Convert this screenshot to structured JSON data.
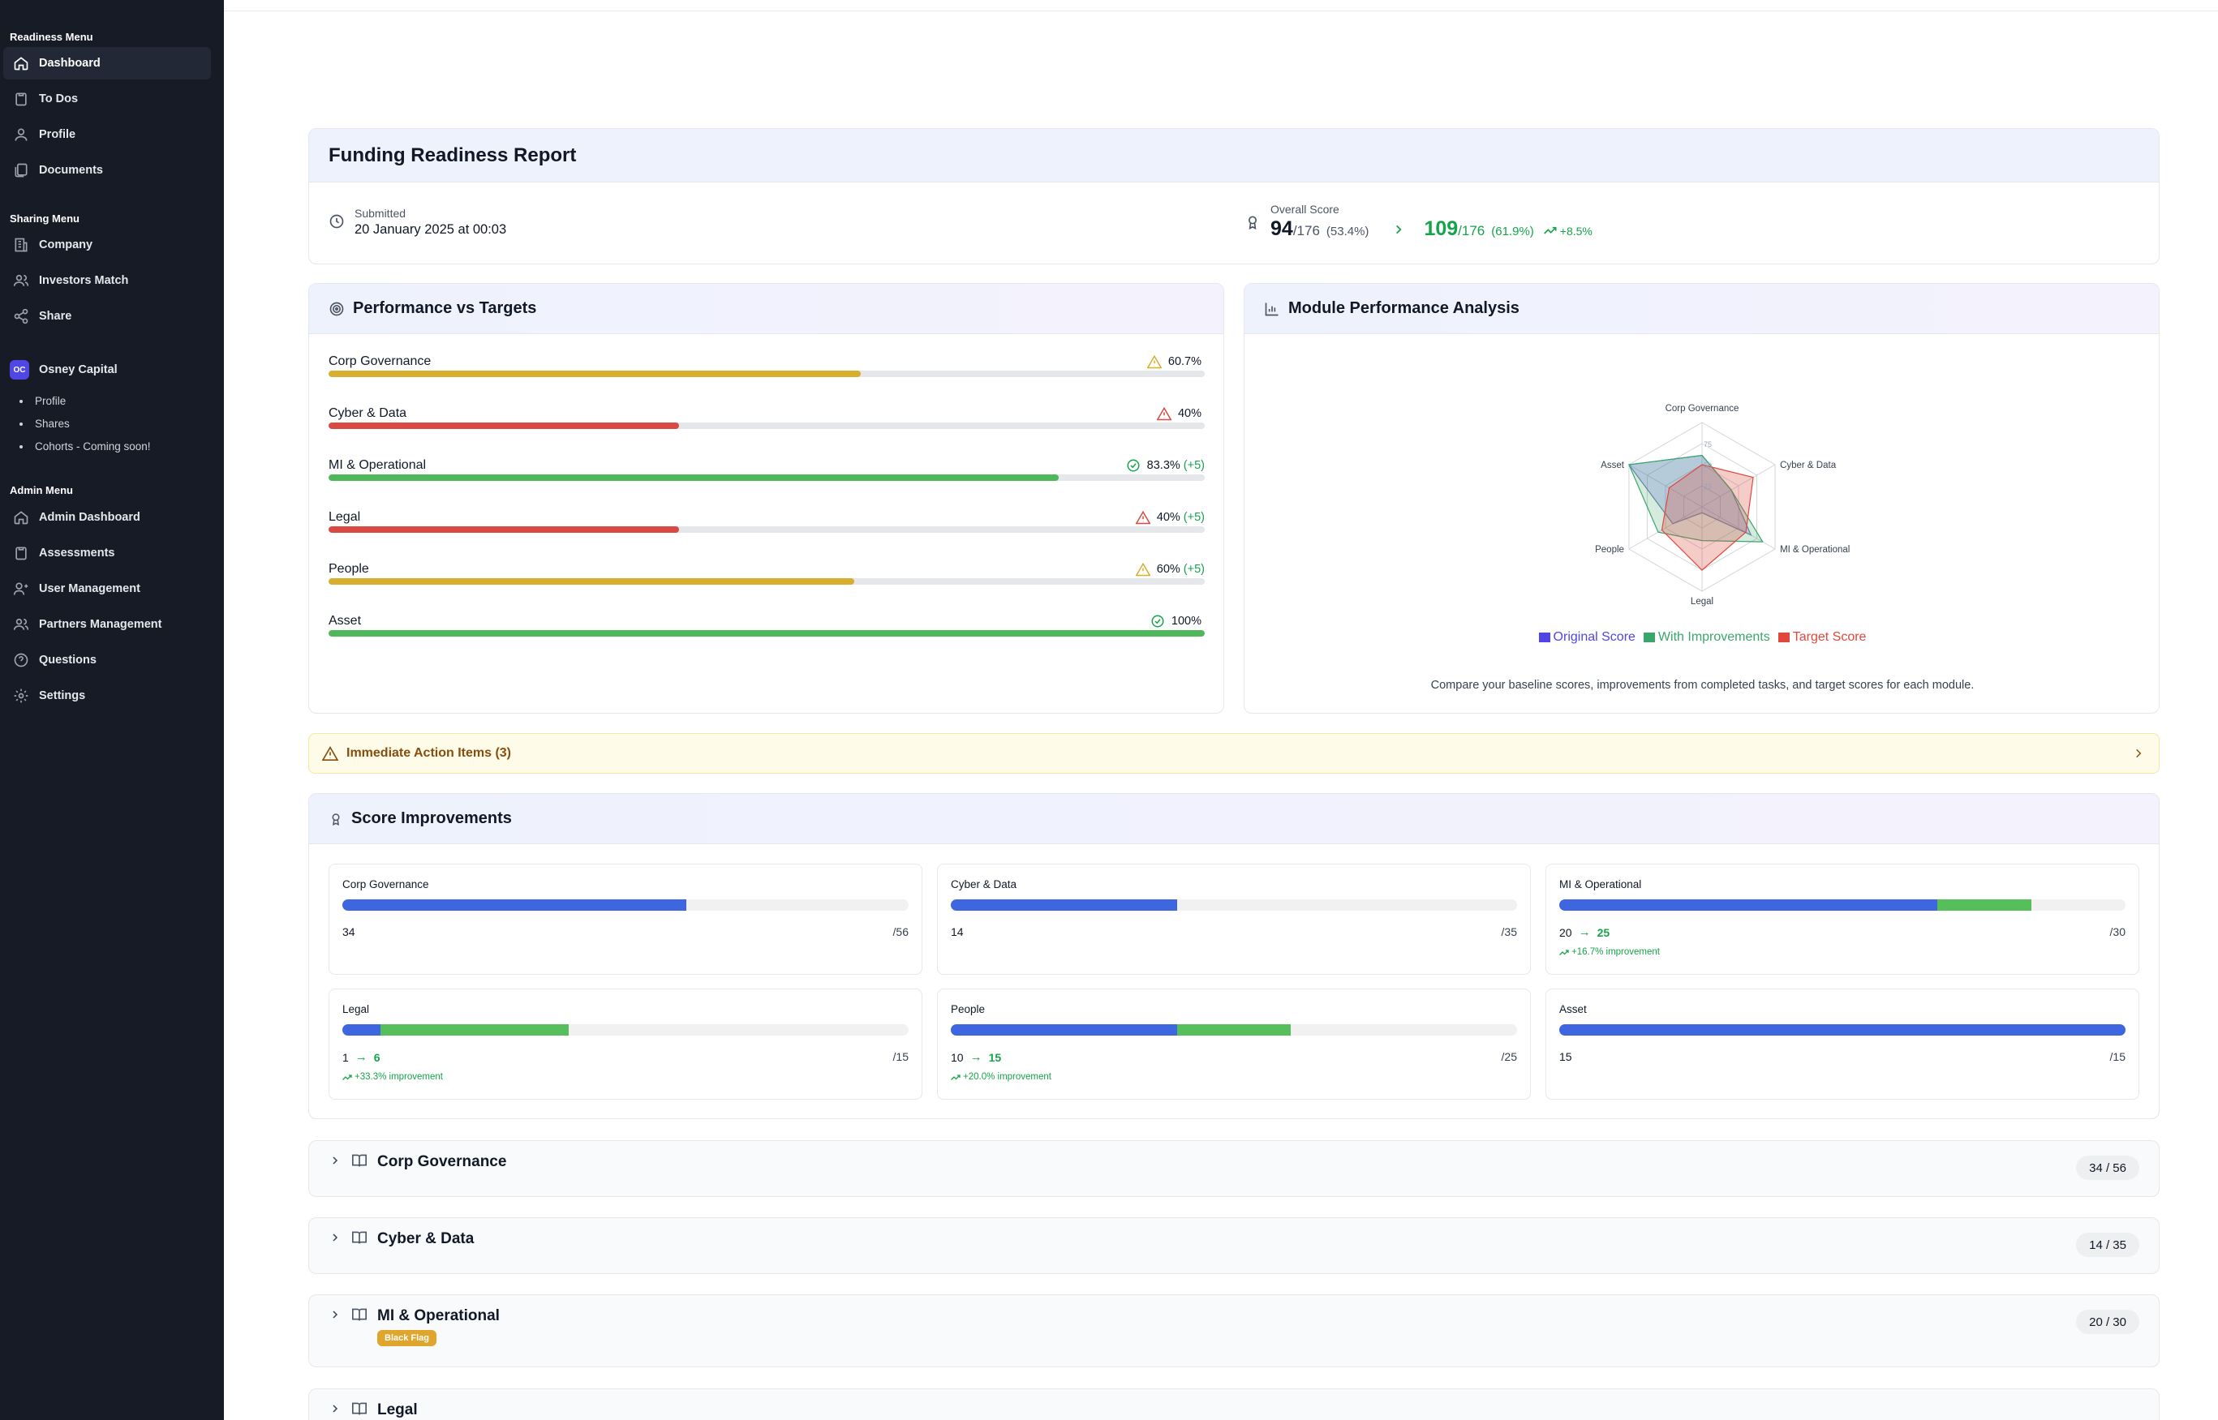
{
  "sidebar": {
    "readiness_title": "Readiness Menu",
    "readiness_items": [
      {
        "label": "Dashboard",
        "icon": "home-icon"
      },
      {
        "label": "To Dos",
        "icon": "clipboard-icon"
      },
      {
        "label": "Profile",
        "icon": "user-icon"
      },
      {
        "label": "Documents",
        "icon": "documents-icon"
      }
    ],
    "sharing_title": "Sharing Menu",
    "sharing_items": [
      {
        "label": "Company",
        "icon": "building-icon"
      },
      {
        "label": "Investors Match",
        "icon": "users-icon"
      },
      {
        "label": "Share",
        "icon": "share-icon"
      }
    ],
    "org": {
      "initials": "OC",
      "name": "Osney Capital",
      "items": [
        "Profile",
        "Shares",
        "Cohorts - Coming soon!"
      ]
    },
    "admin_title": "Admin Menu",
    "admin_items": [
      {
        "label": "Admin Dashboard",
        "icon": "home-icon"
      },
      {
        "label": "Assessments",
        "icon": "clipboard-icon"
      },
      {
        "label": "User Management",
        "icon": "user-icon"
      },
      {
        "label": "Partners Management",
        "icon": "users-icon"
      },
      {
        "label": "Questions",
        "icon": "help-circle-icon"
      },
      {
        "label": "Settings",
        "icon": "gear-icon"
      }
    ]
  },
  "report": {
    "title": "Funding Readiness Report",
    "submitted_label": "Submitted",
    "submitted_value": "20 January 2025 at 00:03",
    "overall_label": "Overall Score",
    "score_before": "94",
    "score_before_total": "/176",
    "score_before_pct": "(53.4%)",
    "score_after": "109",
    "score_after_total": "/176",
    "score_after_pct": "(61.9%)",
    "score_delta": "+8.5%"
  },
  "performance": {
    "title": "Performance vs Targets",
    "rows": [
      {
        "name": "Corp Governance",
        "value": "60.7%",
        "delta": "",
        "fraction": 0.607,
        "status": "warning",
        "color": "#d9ae2e"
      },
      {
        "name": "Cyber & Data",
        "value": "40%",
        "delta": "",
        "fraction": 0.4,
        "status": "danger",
        "color": "#d94a43"
      },
      {
        "name": "MI & Operational",
        "value": "83.3%",
        "delta": "(+5)",
        "fraction": 0.833,
        "status": "ok",
        "color": "#4fb85a"
      },
      {
        "name": "Legal",
        "value": "40%",
        "delta": "(+5)",
        "fraction": 0.4,
        "status": "danger",
        "color": "#d94a43"
      },
      {
        "name": "People",
        "value": "60%",
        "delta": "(+5)",
        "fraction": 0.6,
        "status": "warning",
        "color": "#d9ae2e"
      },
      {
        "name": "Asset",
        "value": "100%",
        "delta": "",
        "fraction": 1.0,
        "status": "ok",
        "color": "#4fb85a"
      }
    ]
  },
  "module_analysis": {
    "title": "Module Performance Analysis",
    "caption": "Compare your baseline scores, improvements from completed tasks, and target scores for each module."
  },
  "chart_data": {
    "type": "radar",
    "categories": [
      "Corp Governance",
      "Cyber & Data",
      "MI & Operational",
      "Legal",
      "People",
      "Asset"
    ],
    "rlim": [
      0,
      100
    ],
    "tick_labels": [
      "25",
      "50",
      "75"
    ],
    "series": [
      {
        "name": "Original Score",
        "values": [
          61,
          40,
          67,
          7,
          40,
          100
        ],
        "color": "#4f46e5"
      },
      {
        "name": "With Improvements",
        "values": [
          61,
          40,
          83,
          40,
          60,
          100
        ],
        "color": "#3aa66b"
      },
      {
        "name": "Target Score",
        "values": [
          50,
          70,
          60,
          75,
          55,
          45
        ],
        "color": "#e0483e"
      }
    ],
    "legend": "bottom"
  },
  "action_items": {
    "label": "Immediate Action Items (3)"
  },
  "improvements": {
    "title": "Score Improvements",
    "tiles": [
      {
        "name": "Corp Governance",
        "original": "34",
        "improved": "",
        "max": "/56",
        "blue": 0.607,
        "green": 0,
        "impr": ""
      },
      {
        "name": "Cyber & Data",
        "original": "14",
        "improved": "",
        "max": "/35",
        "blue": 0.4,
        "green": 0,
        "impr": ""
      },
      {
        "name": "MI & Operational",
        "original": "20",
        "improved": "25",
        "max": "/30",
        "blue": 0.667,
        "green": 0.167,
        "impr": "+16.7% improvement"
      },
      {
        "name": "Legal",
        "original": "1",
        "improved": "6",
        "max": "/15",
        "blue": 0.067,
        "green": 0.333,
        "impr": "+33.3% improvement"
      },
      {
        "name": "People",
        "original": "10",
        "improved": "15",
        "max": "/25",
        "blue": 0.4,
        "green": 0.2,
        "impr": "+20.0% improvement"
      },
      {
        "name": "Asset",
        "original": "15",
        "improved": "",
        "max": "/15",
        "blue": 1.0,
        "green": 0,
        "impr": ""
      }
    ]
  },
  "modules": [
    {
      "title": "Corp Governance",
      "score": "34 / 56",
      "flag": ""
    },
    {
      "title": "Cyber & Data",
      "score": "14 / 35",
      "flag": ""
    },
    {
      "title": "MI & Operational",
      "score": "20 / 30",
      "flag": "Black Flag"
    },
    {
      "title": "Legal",
      "score": "",
      "flag": ""
    }
  ]
}
